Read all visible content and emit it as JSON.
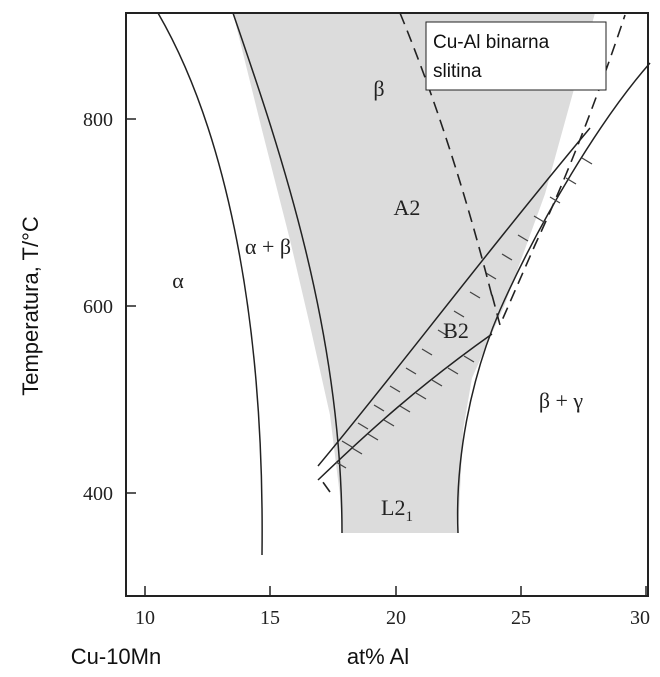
{
  "legend": {
    "line1": "Cu-Al binarna",
    "line2": "slitina"
  },
  "axes": {
    "ylabel": "Temperatura, T/°C",
    "xlabel": "at% Al",
    "x_origin_label": "Cu-10Mn",
    "x_ticks": [
      "10",
      "15",
      "20",
      "25",
      "30"
    ],
    "y_ticks": [
      "400",
      "600",
      "800"
    ]
  },
  "phases": {
    "alpha": "α",
    "alpha_beta": "α + β",
    "beta": "β",
    "a2": "A2",
    "b2": "B2",
    "l21_main": "L2",
    "l21_sub": "1",
    "beta_gamma": "β + γ"
  },
  "colors": {
    "shaded_region": "#dcdcdc",
    "lines": "#222222"
  }
}
